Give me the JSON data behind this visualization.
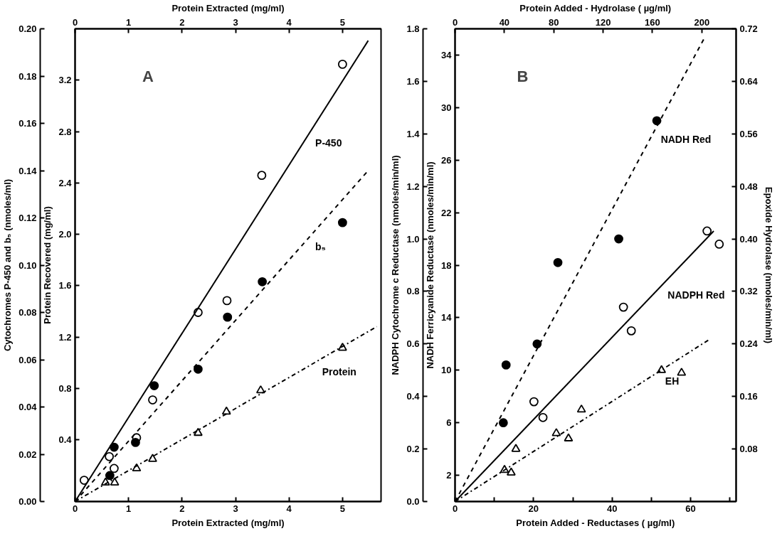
{
  "chart_data": [
    {
      "type": "scatter",
      "xlabel": "Protein Extracted (mg/ml)",
      "x2label": "Protein Extracted (mg/ml)",
      "ylabel": "Cytochromes P-450 and b₅ (nmoles/ml)",
      "y2label": "Protein Recovered (mg/ml)",
      "annotations": [
        "A"
      ],
      "xlim": [
        0,
        5.72
      ],
      "xticks": [
        0,
        1,
        2,
        3,
        4,
        5
      ],
      "x2lim": [
        0,
        5.72
      ],
      "x2ticks": [
        0,
        1,
        2,
        3,
        4,
        5
      ],
      "ylim": [
        0,
        0.2
      ],
      "yticks": [
        {
          "value": 0,
          "label": "0.00"
        },
        0.02,
        0.04,
        0.06,
        0.08,
        {
          "value": 0.1,
          "label": "0.10"
        },
        0.12,
        0.14,
        0.16,
        0.18,
        {
          "value": 0.2,
          "label": "0.20"
        }
      ],
      "y2lim": [
        -0.08,
        3.6
      ],
      "y2ticks": [
        0.4,
        0.8,
        1.2,
        1.6,
        {
          "value": 2,
          "label": "2.0"
        },
        2.4,
        2.8,
        3.2
      ],
      "grid": false,
      "series": [
        {
          "marker": "circle",
          "color": "#ffffff",
          "x": [
            0.17,
            0.64,
            0.73,
            1.15,
            1.45,
            2.3,
            2.84,
            3.49,
            5.0
          ],
          "values": [
            0.009,
            0.019,
            0.014,
            0.027,
            0.043,
            0.08,
            0.085,
            0.138,
            0.185
          ]
        },
        {
          "marker": "circle",
          "color": "#000000",
          "x": [
            0.65,
            0.73,
            1.13,
            1.48,
            2.3,
            2.85,
            3.5,
            5.0
          ],
          "values": [
            0.011,
            0.023,
            0.025,
            0.049,
            0.056,
            0.078,
            0.093,
            0.118
          ]
        },
        {
          "marker": "triangle",
          "color": "#ffffff",
          "x": [
            0.57,
            0.74,
            1.15,
            1.45,
            2.3,
            2.83,
            3.47,
            5.0
          ],
          "values": [
            0.008,
            0.008,
            0.014,
            0.018,
            0.029,
            0.038,
            0.047,
            0.065
          ]
        },
        {
          "type": "line",
          "name": "P-450",
          "line_style": "solid",
          "color": "#000000",
          "x": [
            0,
            5.48
          ],
          "values": [
            0,
            0.195
          ]
        },
        {
          "type": "line",
          "name": "b₅",
          "line_style": "dashed",
          "color": "#000000",
          "x": [
            0,
            5.48
          ],
          "values": [
            0,
            0.14
          ]
        },
        {
          "type": "line",
          "name": "Protein",
          "line_style": "dashdot",
          "color": "#000000",
          "x": [
            0,
            5.64
          ],
          "values": [
            0,
            0.074
          ]
        }
      ]
    },
    {
      "type": "scatter",
      "xlabel": "Protein Added - Reductases ( µg/ml)",
      "x2label": "Protein Added - Hydrolase ( µg/ml)",
      "ylabel": "NADPH Cytochrome c Reductase (nmoles/min/ml)",
      "y2label": "NADH Ferricyanide Reductase (nmoles/min/ml)",
      "y3label": "Epoxide Hydrolase (nmoles/min/ml)",
      "annotations": [
        "B"
      ],
      "xlim": [
        0,
        71.6
      ],
      "xticks": [
        0,
        {
          "value": 10,
          "label": null
        },
        20,
        {
          "value": 30,
          "label": null
        },
        40,
        {
          "value": 50,
          "label": null
        },
        60,
        {
          "value": 70,
          "label": null
        }
      ],
      "x2lim": [
        0,
        227.8
      ],
      "x2ticks": [
        0,
        40,
        80,
        120,
        160,
        200
      ],
      "ylim": [
        0,
        1.8
      ],
      "yticks": [
        {
          "value": 0,
          "label": "0.0"
        },
        0.2,
        0.4,
        0.6,
        0.8,
        {
          "value": 1,
          "label": "1.0"
        },
        1.2,
        1.4,
        1.6,
        1.8
      ],
      "y2lim": [
        0,
        36
      ],
      "y2ticks": [
        2,
        6,
        10,
        14,
        18,
        22,
        26,
        30,
        34
      ],
      "y3lim": [
        0,
        0.72
      ],
      "y3ticks": [
        0.08,
        0.16,
        0.24,
        0.32,
        {
          "value": 0.4,
          "label": "0.40"
        },
        0.48,
        0.56,
        0.64,
        0.72
      ],
      "grid": false,
      "series": [
        {
          "marker": "circle",
          "color": "#000000",
          "x": [
            12.3,
            13.0,
            20.9,
            26.2,
            41.7,
            51.4
          ],
          "values": [
            0.3,
            0.52,
            0.6,
            0.91,
            1.0,
            1.45
          ]
        },
        {
          "marker": "circle",
          "color": "#ffffff",
          "x": [
            20.1,
            22.4,
            42.9,
            44.9,
            64.2,
            67.3
          ],
          "values": [
            0.38,
            0.32,
            0.74,
            0.65,
            1.03,
            0.98
          ]
        },
        {
          "marker": "triangle",
          "color": "#ffffff",
          "x": [
            12.6,
            14.3,
            15.5,
            25.8,
            28.9,
            32.2,
            52.6,
            57.7
          ],
          "values": [
            0.12,
            0.11,
            0.2,
            0.26,
            0.24,
            0.35,
            0.5,
            0.49
          ]
        },
        {
          "type": "line",
          "name": "NADH Red",
          "line_style": "dashed",
          "color": "#000000",
          "x": [
            0,
            63.7
          ],
          "values": [
            0,
            1.77
          ]
        },
        {
          "type": "line",
          "name": "NADPH Red",
          "line_style": "solid",
          "color": "#000000",
          "x": [
            0,
            65.9
          ],
          "values": [
            0,
            1.03
          ]
        },
        {
          "type": "line",
          "name": "EH",
          "line_style": "dashdot",
          "color": "#000000",
          "x": [
            0,
            65.1
          ],
          "values": [
            0,
            0.62
          ]
        }
      ]
    }
  ]
}
